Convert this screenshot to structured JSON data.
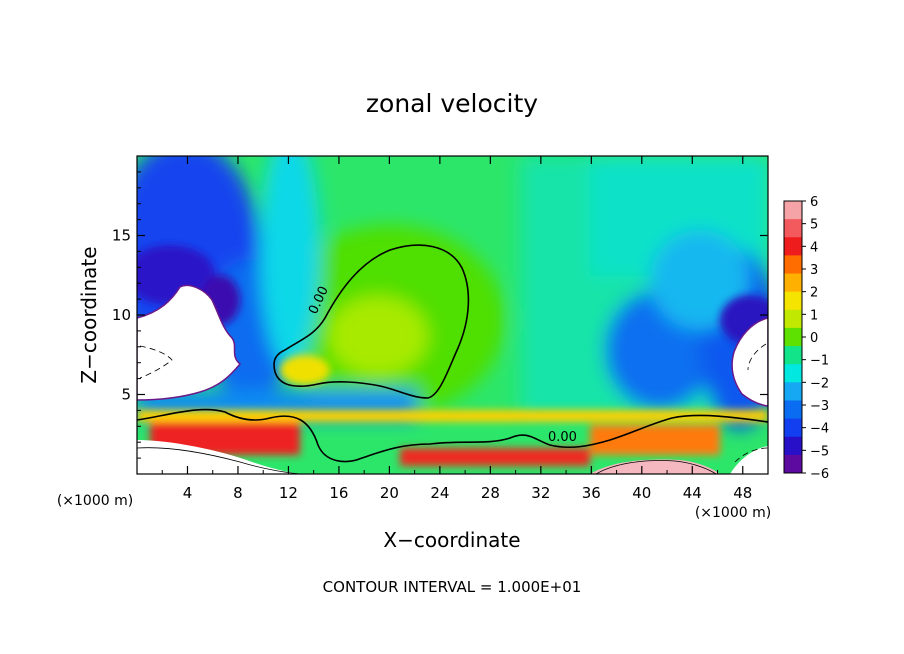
{
  "chart_data": {
    "type": "heatmap",
    "title": "zonal velocity",
    "xlabel": "X−coordinate",
    "ylabel": "Z−coordinate",
    "x_units_left": "(×1000 m)",
    "x_units_right": "(×1000 m)",
    "xlim": [
      0,
      50
    ],
    "ylim": [
      0,
      20
    ],
    "x_ticks": [
      4,
      8,
      12,
      16,
      20,
      24,
      28,
      32,
      36,
      40,
      44,
      48
    ],
    "y_ticks": [
      5,
      10,
      15
    ],
    "contour_labels": [
      {
        "text": "0.00",
        "x": 14.5,
        "y": 9.6
      },
      {
        "text": "0.00",
        "x": 34.0,
        "y": 2.3
      }
    ],
    "colorbar": {
      "levels": [
        6,
        5,
        4,
        3,
        2,
        1,
        0,
        -1,
        -2,
        -3,
        -4,
        -5,
        -6
      ],
      "colors": [
        "#f6a3a8",
        "#f35a5e",
        "#ee1c1c",
        "#ff6d00",
        "#ffb000",
        "#f5e400",
        "#c0e800",
        "#5ee000",
        "#12e48a",
        "#00e8e0",
        "#16a8f2",
        "#0a6cf0",
        "#1240f0",
        "#2810c8",
        "#5c0aa0"
      ]
    },
    "footer": "CONTOUR INTERVAL = 1.000E+01"
  }
}
